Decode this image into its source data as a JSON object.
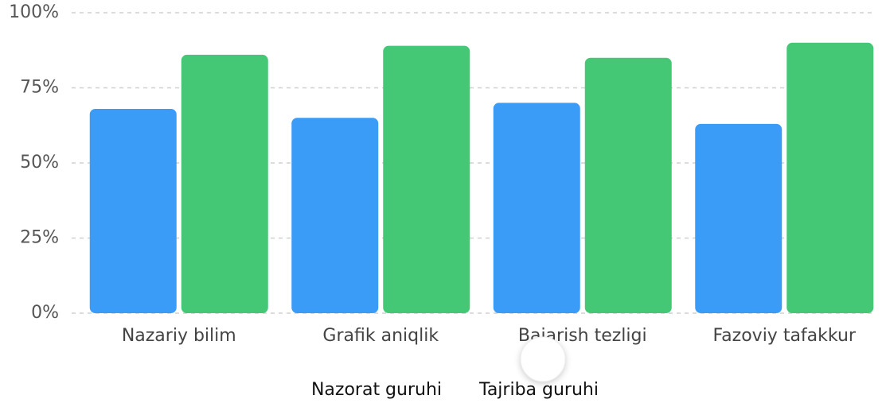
{
  "chart_data": {
    "type": "bar",
    "categories": [
      "Nazariy bilim",
      "Grafik aniqlik",
      "Bajarish tezligi",
      "Fazoviy tafakkur"
    ],
    "series": [
      {
        "name": "Nazorat guruhi",
        "color": "#3b9cf7",
        "values": [
          68,
          65,
          70,
          63
        ]
      },
      {
        "name": "Tajriba guruhi",
        "color": "#45c876",
        "values": [
          86,
          89,
          85,
          90
        ]
      }
    ],
    "ylim": [
      0,
      100
    ],
    "yticks": [
      {
        "value": 0,
        "label": "0%"
      },
      {
        "value": 25,
        "label": "25%"
      },
      {
        "value": 50,
        "label": "50%"
      },
      {
        "value": 75,
        "label": "75%"
      },
      {
        "value": 100,
        "label": "100%"
      }
    ],
    "grid": true,
    "legend": "bottom"
  }
}
